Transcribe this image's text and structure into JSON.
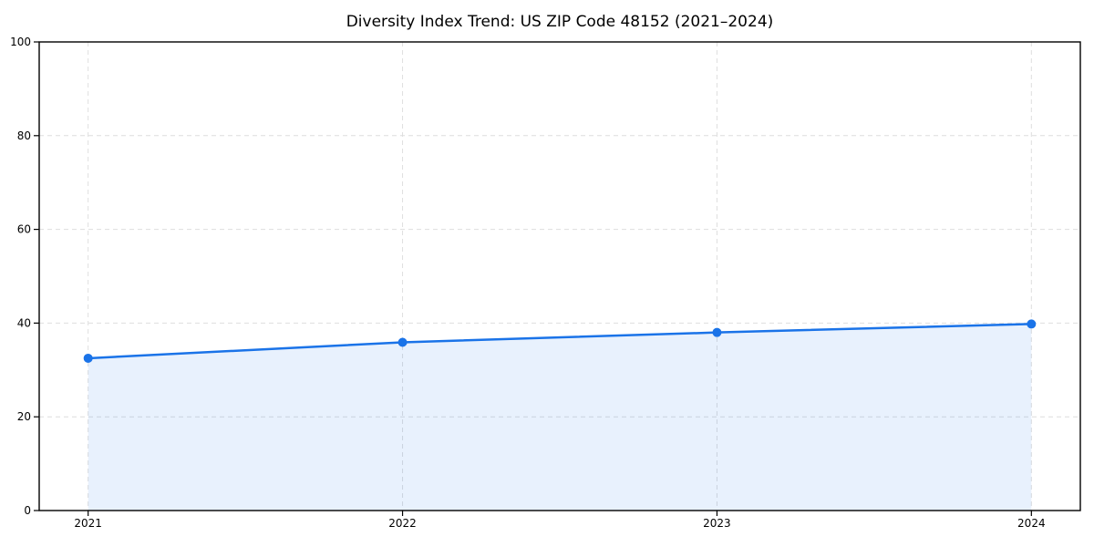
{
  "chart_data": {
    "type": "line",
    "title": "Diversity Index Trend: US ZIP Code 48152 (2021–2024)",
    "series_name": "Diversity Index",
    "x": [
      "2021",
      "2022",
      "2023",
      "2024"
    ],
    "values": [
      32.5,
      35.9,
      38.0,
      39.8
    ],
    "xlabel": "",
    "ylabel": "",
    "ylim": [
      0,
      100
    ],
    "yticks": [
      0,
      20,
      40,
      60,
      80,
      100
    ],
    "xticks": [
      "2021",
      "2022",
      "2023",
      "2024"
    ],
    "grid": "dashed",
    "legend": "none",
    "area_fill": true,
    "markers": true,
    "colors": {
      "line": "#1a73e8",
      "marker": "#1a73e8",
      "area": "#1a73e8",
      "area_opacity": 0.1,
      "grid": "#dedede",
      "spine": "#000000",
      "tick_text": "#000000",
      "title_text": "#000000",
      "background": "#ffffff"
    }
  }
}
